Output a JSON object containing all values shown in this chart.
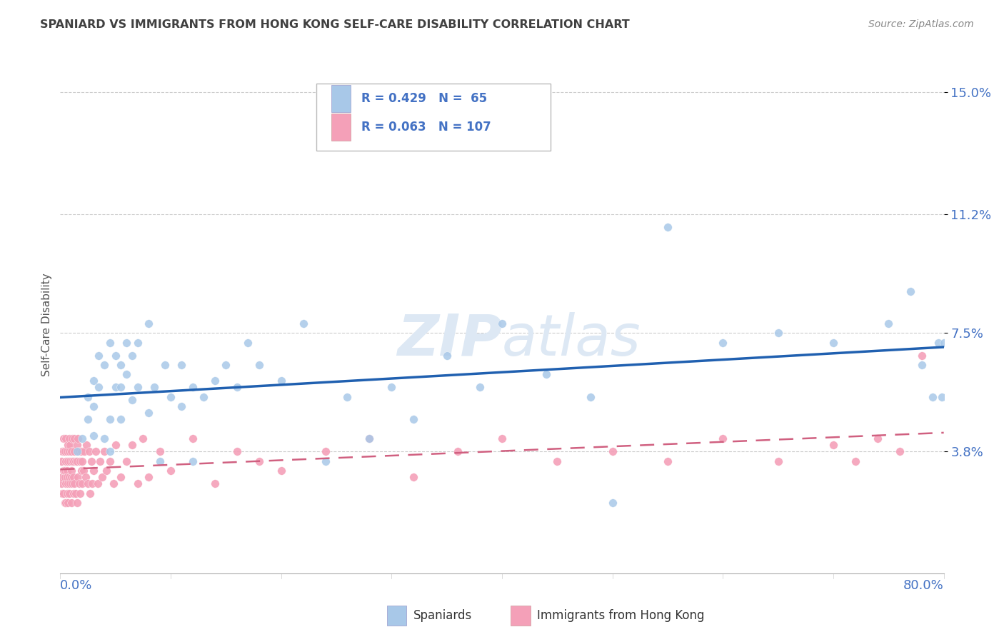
{
  "title": "SPANIARD VS IMMIGRANTS FROM HONG KONG SELF-CARE DISABILITY CORRELATION CHART",
  "source": "Source: ZipAtlas.com",
  "ylabel": "Self-Care Disability",
  "xmin": 0.0,
  "xmax": 0.8,
  "ymin": 0.0,
  "ymax": 0.155,
  "blue_R": 0.429,
  "blue_N": 65,
  "pink_R": 0.063,
  "pink_N": 107,
  "blue_color": "#a8c8e8",
  "pink_color": "#f4a0b8",
  "blue_line_color": "#2060b0",
  "pink_line_color": "#d06080",
  "title_color": "#404040",
  "axis_label_color": "#4472c4",
  "watermark_color": "#dde8f4",
  "blue_scatter_x": [
    0.015,
    0.02,
    0.025,
    0.025,
    0.03,
    0.03,
    0.03,
    0.035,
    0.035,
    0.04,
    0.04,
    0.045,
    0.045,
    0.045,
    0.05,
    0.05,
    0.055,
    0.055,
    0.055,
    0.06,
    0.06,
    0.065,
    0.065,
    0.07,
    0.07,
    0.08,
    0.08,
    0.085,
    0.09,
    0.095,
    0.1,
    0.11,
    0.11,
    0.12,
    0.12,
    0.13,
    0.14,
    0.15,
    0.16,
    0.17,
    0.18,
    0.2,
    0.22,
    0.24,
    0.26,
    0.28,
    0.3,
    0.32,
    0.35,
    0.38,
    0.4,
    0.44,
    0.48,
    0.5,
    0.55,
    0.6,
    0.65,
    0.7,
    0.75,
    0.77,
    0.78,
    0.79,
    0.795,
    0.798,
    0.8
  ],
  "blue_scatter_y": [
    0.038,
    0.042,
    0.055,
    0.048,
    0.06,
    0.052,
    0.043,
    0.068,
    0.058,
    0.065,
    0.042,
    0.072,
    0.048,
    0.038,
    0.068,
    0.058,
    0.065,
    0.058,
    0.048,
    0.072,
    0.062,
    0.068,
    0.054,
    0.072,
    0.058,
    0.078,
    0.05,
    0.058,
    0.035,
    0.065,
    0.055,
    0.065,
    0.052,
    0.058,
    0.035,
    0.055,
    0.06,
    0.065,
    0.058,
    0.072,
    0.065,
    0.06,
    0.078,
    0.035,
    0.055,
    0.042,
    0.058,
    0.048,
    0.068,
    0.058,
    0.078,
    0.062,
    0.055,
    0.022,
    0.108,
    0.072,
    0.075,
    0.072,
    0.078,
    0.088,
    0.065,
    0.055,
    0.072,
    0.055,
    0.072
  ],
  "pink_scatter_x": [
    0.001,
    0.001,
    0.002,
    0.002,
    0.002,
    0.003,
    0.003,
    0.003,
    0.003,
    0.004,
    0.004,
    0.004,
    0.004,
    0.005,
    0.005,
    0.005,
    0.005,
    0.006,
    0.006,
    0.006,
    0.006,
    0.007,
    0.007,
    0.007,
    0.007,
    0.008,
    0.008,
    0.008,
    0.008,
    0.009,
    0.009,
    0.009,
    0.01,
    0.01,
    0.01,
    0.01,
    0.011,
    0.011,
    0.011,
    0.012,
    0.012,
    0.012,
    0.013,
    0.013,
    0.013,
    0.014,
    0.014,
    0.015,
    0.015,
    0.015,
    0.016,
    0.016,
    0.017,
    0.017,
    0.018,
    0.018,
    0.019,
    0.019,
    0.02,
    0.02,
    0.021,
    0.022,
    0.023,
    0.024,
    0.025,
    0.026,
    0.027,
    0.028,
    0.029,
    0.03,
    0.032,
    0.034,
    0.036,
    0.038,
    0.04,
    0.042,
    0.045,
    0.048,
    0.05,
    0.055,
    0.06,
    0.065,
    0.07,
    0.075,
    0.08,
    0.09,
    0.1,
    0.12,
    0.14,
    0.16,
    0.18,
    0.2,
    0.24,
    0.28,
    0.32,
    0.36,
    0.4,
    0.45,
    0.5,
    0.55,
    0.6,
    0.65,
    0.7,
    0.72,
    0.74,
    0.76,
    0.78
  ],
  "pink_scatter_y": [
    0.028,
    0.035,
    0.025,
    0.038,
    0.03,
    0.032,
    0.025,
    0.038,
    0.042,
    0.03,
    0.022,
    0.038,
    0.032,
    0.035,
    0.028,
    0.042,
    0.022,
    0.032,
    0.025,
    0.038,
    0.03,
    0.04,
    0.022,
    0.035,
    0.028,
    0.038,
    0.03,
    0.042,
    0.025,
    0.035,
    0.028,
    0.04,
    0.03,
    0.022,
    0.038,
    0.032,
    0.035,
    0.028,
    0.042,
    0.025,
    0.035,
    0.03,
    0.042,
    0.028,
    0.038,
    0.025,
    0.035,
    0.04,
    0.022,
    0.035,
    0.03,
    0.042,
    0.028,
    0.038,
    0.025,
    0.035,
    0.032,
    0.038,
    0.028,
    0.035,
    0.032,
    0.038,
    0.03,
    0.04,
    0.028,
    0.038,
    0.025,
    0.035,
    0.028,
    0.032,
    0.038,
    0.028,
    0.035,
    0.03,
    0.038,
    0.032,
    0.035,
    0.028,
    0.04,
    0.03,
    0.035,
    0.04,
    0.028,
    0.042,
    0.03,
    0.038,
    0.032,
    0.042,
    0.028,
    0.038,
    0.035,
    0.032,
    0.038,
    0.042,
    0.03,
    0.038,
    0.042,
    0.035,
    0.038,
    0.035,
    0.042,
    0.035,
    0.04,
    0.035,
    0.042,
    0.038,
    0.068
  ]
}
